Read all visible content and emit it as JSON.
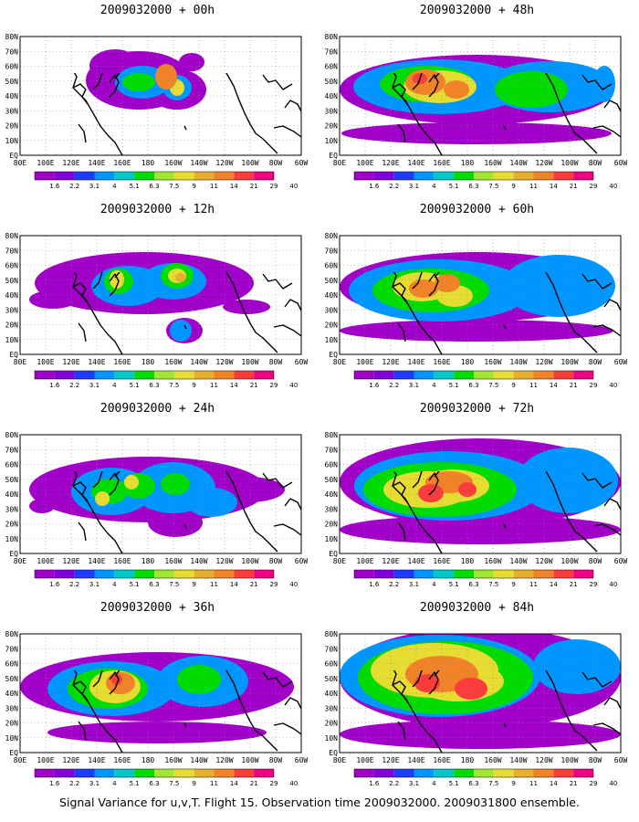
{
  "figure": {
    "caption": "Signal Variance for u,v,T. Flight 15. Observation time 2009032000. 2009031800 ensemble."
  },
  "colorbar": {
    "levels": [
      "1.6",
      "2.2",
      "3.1",
      "4",
      "5.1",
      "6.3",
      "7.5",
      "9",
      "11",
      "14",
      "21",
      "29",
      "40"
    ],
    "colors": [
      "#a000c8",
      "#8200dc",
      "#1e3cff",
      "#0096ff",
      "#00c8c8",
      "#00dc00",
      "#a0e632",
      "#e6dc32",
      "#e6af2d",
      "#f08228",
      "#fa3c3c",
      "#f00082"
    ]
  },
  "map": {
    "lat_ticks": [
      "80N",
      "70N",
      "60N",
      "50N",
      "40N",
      "30N",
      "20N",
      "10N",
      "EQ"
    ],
    "lon_ticks": [
      "80E",
      "100E",
      "120E",
      "140E",
      "160E",
      "180",
      "160W",
      "140W",
      "120W",
      "100W",
      "80W",
      "60W"
    ],
    "lat_range": [
      0,
      80
    ],
    "lon_range": [
      "80E",
      "60W"
    ],
    "grid": "dotted"
  },
  "chart_data": [
    {
      "type": "heatmap",
      "title": "2009032000 + 00h",
      "lead_hours": 0,
      "peak_level": "14"
    },
    {
      "type": "heatmap",
      "title": "2009032000 + 48h",
      "lead_hours": 48,
      "peak_level": "21"
    },
    {
      "type": "heatmap",
      "title": "2009032000 + 12h",
      "lead_hours": 12,
      "peak_level": "11"
    },
    {
      "type": "heatmap",
      "title": "2009032000 + 60h",
      "lead_hours": 60,
      "peak_level": "21"
    },
    {
      "type": "heatmap",
      "title": "2009032000 + 24h",
      "lead_hours": 24,
      "peak_level": "11"
    },
    {
      "type": "heatmap",
      "title": "2009032000 + 72h",
      "lead_hours": 72,
      "peak_level": "29"
    },
    {
      "type": "heatmap",
      "title": "2009032000 + 36h",
      "lead_hours": 36,
      "peak_level": "21"
    },
    {
      "type": "heatmap",
      "title": "2009032000 + 84h",
      "lead_hours": 84,
      "peak_level": "29"
    }
  ]
}
